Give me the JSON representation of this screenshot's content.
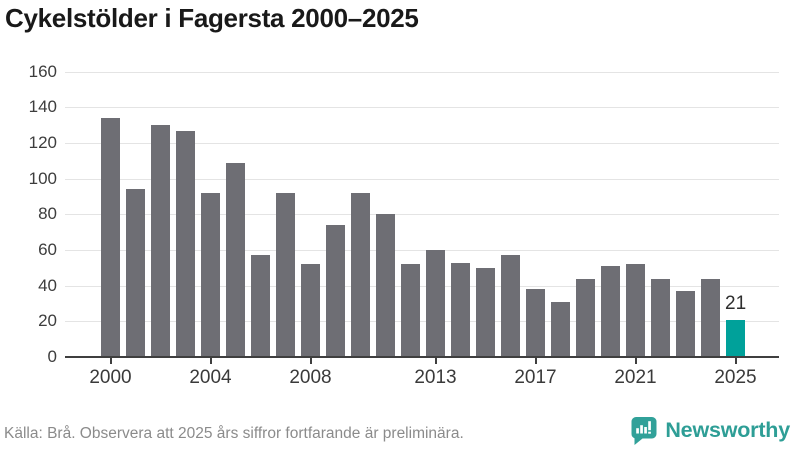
{
  "title": "Cykelstölder i Fagersta 2000–2025",
  "footer": {
    "source": "Källa: Brå. Observera att 2025 års siffror fortfarande är preliminära."
  },
  "branding": {
    "name": "Newsworthy",
    "icon": "bar-chart-speech-bubble-icon",
    "color": "#2E9E96"
  },
  "colors": {
    "bar_default": "#6E6E74",
    "bar_highlight": "#00A19A",
    "gridline": "#E4E4E4",
    "axis": "#3F3F3F",
    "tick_label": "#3D3D3D",
    "title_text": "#191919",
    "source_text": "#8B8B8B"
  },
  "chart_data": {
    "type": "bar",
    "title": "Cykelstölder i Fagersta 2000–2025",
    "xlabel": "",
    "ylabel": "",
    "categories": [
      2000,
      2001,
      2002,
      2003,
      2004,
      2005,
      2006,
      2007,
      2008,
      2009,
      2010,
      2011,
      2012,
      2013,
      2014,
      2015,
      2016,
      2017,
      2018,
      2019,
      2020,
      2021,
      2022,
      2023,
      2024,
      2025
    ],
    "values": [
      134,
      94,
      130,
      127,
      92,
      109,
      57,
      92,
      52,
      74,
      92,
      80,
      52,
      60,
      53,
      50,
      57,
      38,
      31,
      44,
      51,
      52,
      44,
      37,
      44,
      21
    ],
    "ylim": [
      0,
      160
    ],
    "yticks": [
      0,
      20,
      40,
      60,
      80,
      100,
      120,
      140,
      160
    ],
    "xtick_years": [
      2000,
      2004,
      2008,
      2013,
      2017,
      2021,
      2025
    ],
    "grid": true,
    "legend": false,
    "highlight": {
      "year": 2025,
      "value": 21,
      "label": "21",
      "color": "#00A19A"
    }
  }
}
